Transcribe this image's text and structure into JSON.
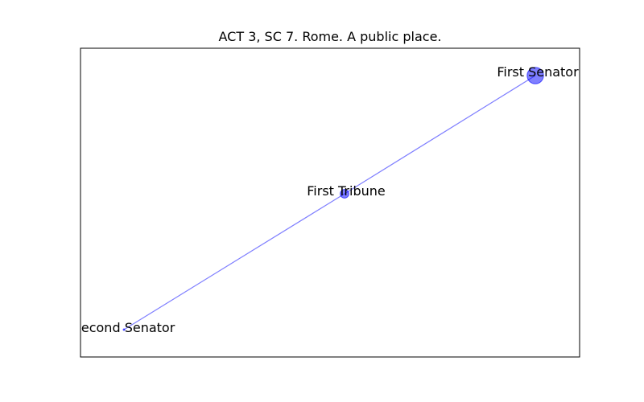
{
  "figure": {
    "title": "ACT 3, SC 7. Rome. A public place."
  },
  "graph": {
    "node_color": "#0000ff",
    "edge_color": "#0000ff",
    "nodes": [
      {
        "id": "first-senator",
        "label": "First Senator",
        "weight": 3
      },
      {
        "id": "first-tribune",
        "label": "First Tribune",
        "weight": 1
      },
      {
        "id": "second-senator",
        "label": "Second Senator",
        "weight": 0
      }
    ],
    "edges": [
      {
        "source": "second-senator",
        "target": "first-tribune"
      },
      {
        "source": "first-tribune",
        "target": "first-senator"
      }
    ]
  }
}
